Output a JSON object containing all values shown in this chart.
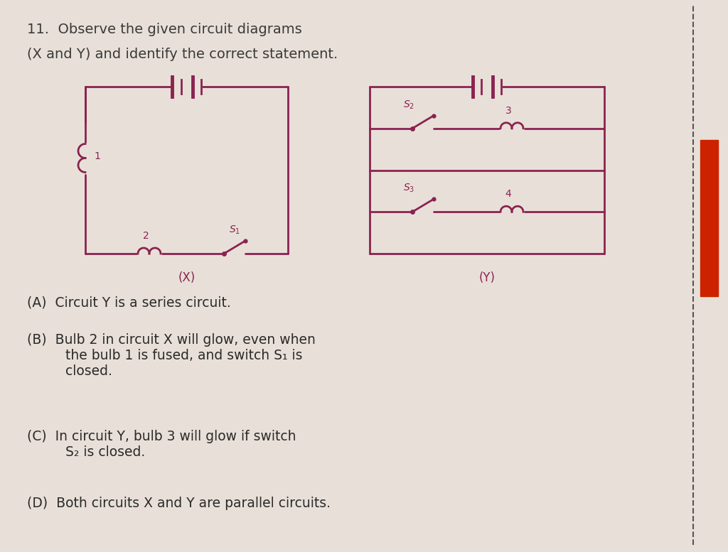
{
  "bg_color": "#e8e0d8",
  "circuit_color": "#8B2252",
  "text_color": "#8B2252",
  "title_line1": "11.  Observe the given circuit diagrams",
  "title_line2": "(X and Y) and identify the correct statement.",
  "options": [
    "(A)  Circuit Y is a series circuit.",
    "(B)  Bulb 2 in circuit X will glow, even when\n      the bulb 1 is fused, and switch S₁ is\n      closed.",
    "(C)  In circuit Y, bulb 3 will glow if switch\n      S₂ is closed.",
    "(D)  Both circuits X and Y are parallel circuits."
  ],
  "figsize": [
    10.24,
    7.77
  ],
  "dpi": 100
}
